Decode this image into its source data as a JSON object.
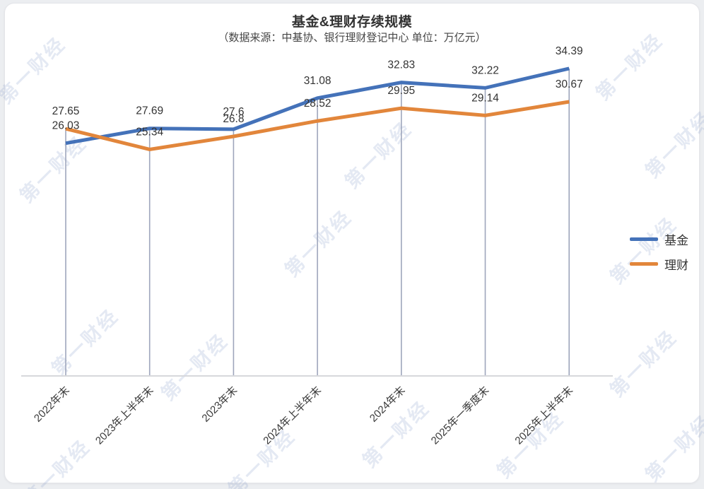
{
  "page": {
    "watermark_text": "第一财经"
  },
  "chart_data": {
    "type": "line",
    "title": "基金&理财存续规模",
    "subtitle": "（数据来源：中基协、银行理财登记中心 单位：万亿元）",
    "categories": [
      "2022年末",
      "2023年上半年末",
      "2023年末",
      "2024年上半年末",
      "2024年末",
      "2025年一季度末",
      "2025年上半年末"
    ],
    "series": [
      {
        "name": "基金",
        "color": "#4472b9",
        "values": [
          26.03,
          27.69,
          27.6,
          31.08,
          32.83,
          32.22,
          34.39
        ]
      },
      {
        "name": "理财",
        "color": "#e2863b",
        "values": [
          27.65,
          25.34,
          26.8,
          28.52,
          29.95,
          29.14,
          30.67
        ]
      }
    ],
    "ylim": [
      0,
      37
    ],
    "grid": false,
    "data_labels": true,
    "legend_position": "right",
    "axis_color": "#d7d8dc",
    "dropline_color": "#9ea6bc",
    "label_color": "#333333"
  }
}
